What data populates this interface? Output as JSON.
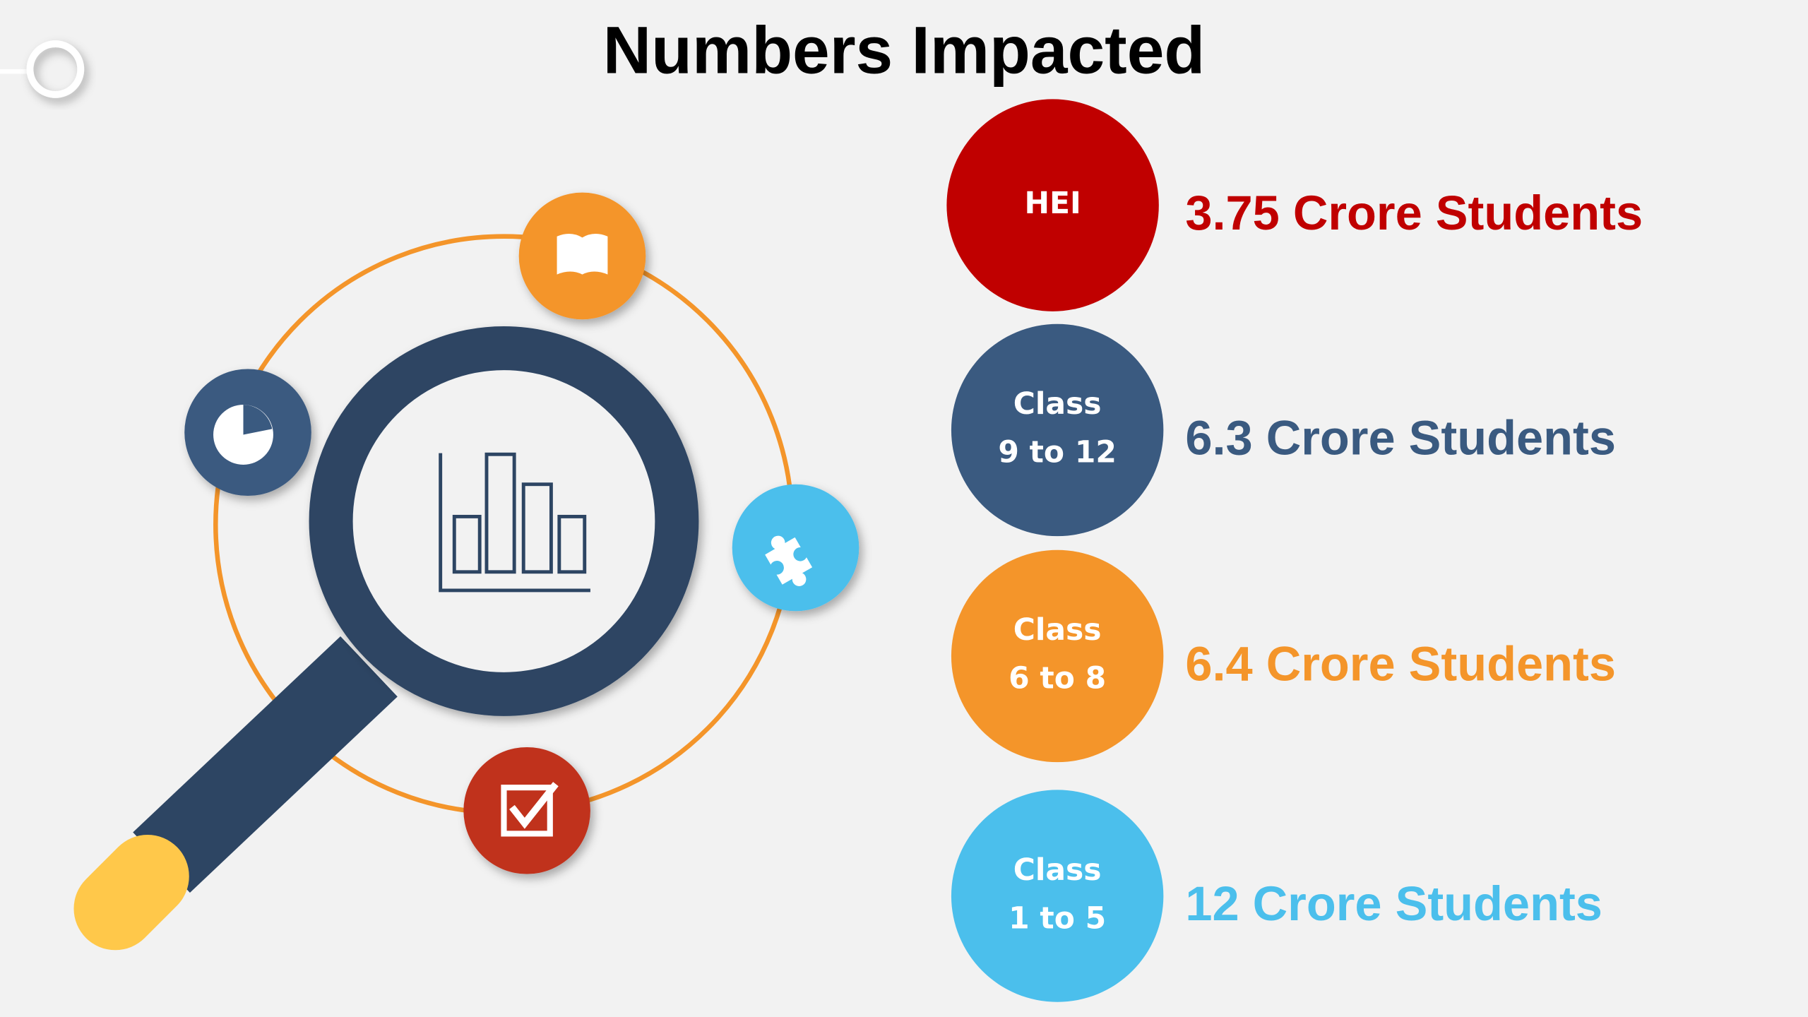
{
  "header": {
    "title": "Numbers Impacted"
  },
  "items": [
    {
      "label_lines": [
        "HEI"
      ],
      "text": "3.75 Crore Students",
      "color": "#c00000"
    },
    {
      "label_lines": [
        "Class",
        "9 to 12"
      ],
      "text": "6.3 Crore Students",
      "color": "#3a5a80"
    },
    {
      "label_lines": [
        "Class",
        "6 to 8"
      ],
      "text": "6.4 Crore Students",
      "color": "#f4952a"
    },
    {
      "label_lines": [
        "Class",
        "1 to 5"
      ],
      "text": "12 Crore Students",
      "color": "#4bbfec"
    }
  ]
}
